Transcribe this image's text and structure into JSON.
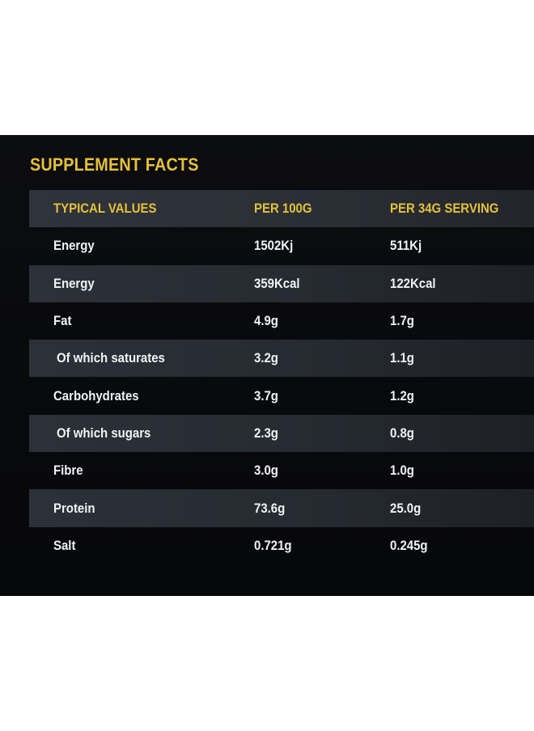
{
  "title": "SUPPLEMENT FACTS",
  "columns": [
    "TYPICAL VALUES",
    "PER 100G",
    "PER 34G SERVING"
  ],
  "rows": [
    [
      "Energy",
      "1502Kj",
      "511Kj"
    ],
    [
      "Energy",
      "359Kcal",
      "122Kcal"
    ],
    [
      "Fat",
      "4.9g",
      "1.7g"
    ],
    [
      "Of which saturates",
      "3.2g",
      "1.1g"
    ],
    [
      "Carbohydrates",
      "3.7g",
      "1.2g"
    ],
    [
      "Of which sugars",
      "2.3g",
      "0.8g"
    ],
    [
      "Fibre",
      "3.0g",
      "1.0g"
    ],
    [
      "Protein",
      "73.6g",
      "25.0g"
    ],
    [
      "Salt",
      "0.721g",
      "0.245g"
    ]
  ],
  "colors": {
    "accent": "#e5c13a",
    "background": "#0a0b0e",
    "shaded_row": "#2a2e35",
    "text": "#f1f2f3"
  }
}
